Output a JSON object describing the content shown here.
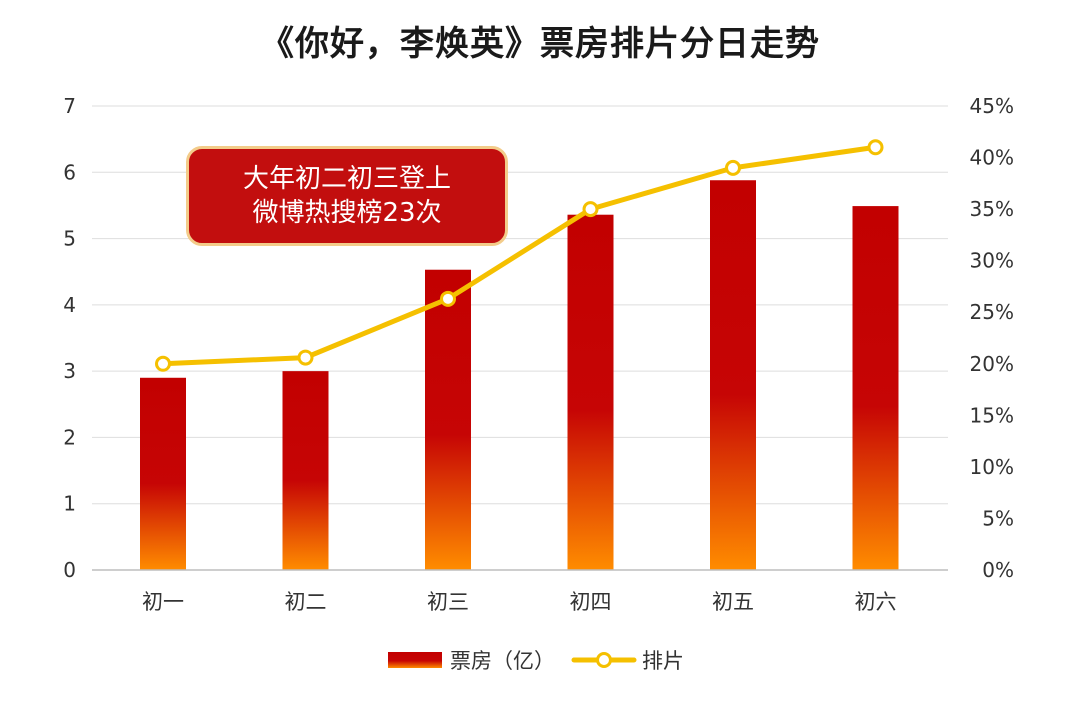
{
  "chart_data": {
    "type": "bar",
    "title": "《你好，李焕英》票房排片分日走势",
    "categories": [
      "初一",
      "初二",
      "初三",
      "初四",
      "初五",
      "初六"
    ],
    "series": [
      {
        "name": "票房（亿）",
        "type": "bar",
        "axis": "left",
        "values": [
          2.9,
          3.0,
          4.53,
          5.36,
          5.88,
          5.49
        ]
      },
      {
        "name": "排片",
        "type": "line",
        "axis": "right",
        "values": [
          20.0,
          20.6,
          26.3,
          35.0,
          39.0,
          41.0
        ]
      }
    ],
    "y_left": {
      "ylim": [
        0,
        7
      ],
      "ticks": [
        "0",
        "1",
        "2",
        "3",
        "4",
        "5",
        "6",
        "7"
      ]
    },
    "y_right": {
      "ylim": [
        0,
        45
      ],
      "ticks": [
        "0%",
        "5%",
        "10%",
        "15%",
        "20%",
        "25%",
        "30%",
        "35%",
        "40%",
        "45%"
      ]
    },
    "annotation": [
      "大年初二初三登上",
      "微博热搜榜23次"
    ],
    "grid": true,
    "legend_position": "bottom",
    "colors": {
      "bar_top": "#c20000",
      "bar_bottom": "#ff8c00",
      "line": "#f5c000",
      "grid": "#dedede",
      "callout_bg": "#c20e0e",
      "callout_border": "#f3cc8a"
    }
  }
}
